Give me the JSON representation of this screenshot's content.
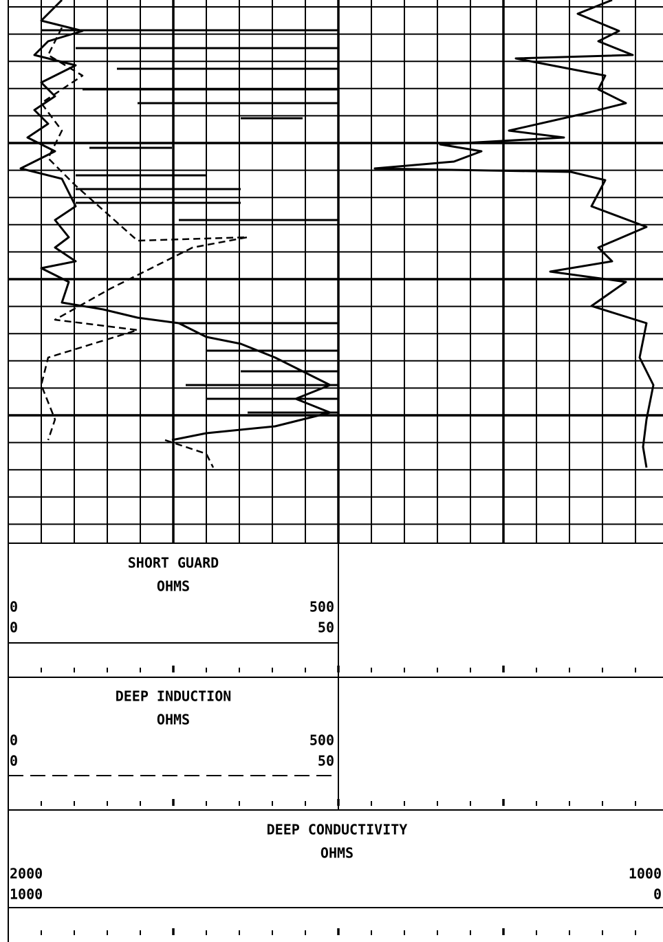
{
  "panels": [
    {
      "title": "SHORT GUARD",
      "unit": "OHMS",
      "scale_left": [
        "0",
        "0"
      ],
      "scale_right": [
        "500",
        "50"
      ]
    },
    {
      "title": "DEEP INDUCTION",
      "unit": "OHMS",
      "scale_left": [
        "0",
        "0"
      ],
      "scale_right": [
        "500",
        "50"
      ]
    },
    {
      "title": "DEEP CONDUCTIVITY",
      "unit": "OHMS",
      "scale_left": [
        "2000",
        "1000"
      ],
      "scale_right": [
        "1000",
        "0"
      ]
    }
  ]
}
